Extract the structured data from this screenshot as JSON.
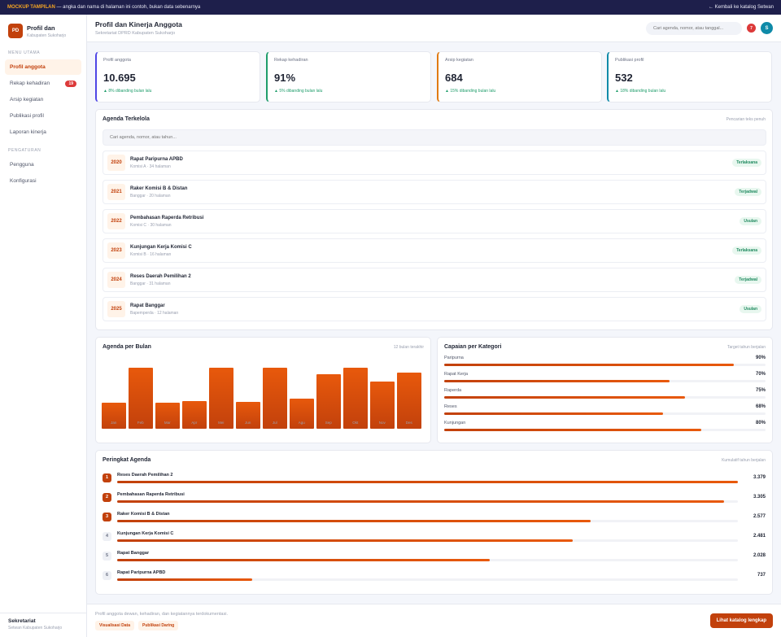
{
  "topbar": {
    "tag": "MOCKUP TAMPILAN",
    "note": "— angka dan nama di halaman ini contoh, bukan data sebenarnya",
    "back": "← Kembali ke katalog Setwan"
  },
  "brand": {
    "initials": "PD",
    "title": "Profil dan",
    "subtitle": "Kabupaten Sukoharjo"
  },
  "sidebar": {
    "section_main": "MENU UTAMA",
    "items": [
      {
        "label": "Profil anggota",
        "active": true
      },
      {
        "label": "Rekap kehadiran",
        "badge": "19"
      },
      {
        "label": "Arsip kegiatan"
      },
      {
        "label": "Publikasi profil"
      },
      {
        "label": "Laporan kinerja"
      }
    ],
    "section_settings": "PENGATURAN",
    "settings": [
      {
        "label": "Pengguna"
      },
      {
        "label": "Konfigurasi"
      }
    ],
    "footer_title": "Sekretariat",
    "footer_sub": "Setwan Kabupaten Sukoharjo"
  },
  "header": {
    "title": "Profil dan Kinerja Anggota",
    "subtitle": "Sekretariat DPRD Kabupaten Sukoharjo",
    "search_placeholder": "Cari agenda, nomor, atau tanggal...",
    "notif_count": "7",
    "avatar": "S"
  },
  "stats": [
    {
      "label": "Profil anggota",
      "value": "10.695",
      "delta": "▲ 8% dibanding bulan lalu",
      "color": "#4f46e5"
    },
    {
      "label": "Rekap kehadiran",
      "value": "91%",
      "delta": "▲ 5% dibanding bulan lalu",
      "color": "#1f9d6b"
    },
    {
      "label": "Arsip kegiatan",
      "value": "684",
      "delta": "▲ 15% dibanding bulan lalu",
      "color": "#e07a10"
    },
    {
      "label": "Publikasi profil",
      "value": "532",
      "delta": "▲ 18% dibanding bulan lalu",
      "color": "#0f8aa8"
    }
  ],
  "agenda": {
    "title": "Agenda Terkelola",
    "hint": "Pencarian teks penuh",
    "search_placeholder": "Cari agenda, nomor, atau tahun...",
    "rows": [
      {
        "year": "2020",
        "name": "Rapat Paripurna APBD",
        "meta": "Komisi A · 34 halaman",
        "status": "Terlaksana"
      },
      {
        "year": "2021",
        "name": "Raker Komisi B & Distan",
        "meta": "Banggar · 20 halaman",
        "status": "Terjadwal"
      },
      {
        "year": "2022",
        "name": "Pembahasan Raperda Retribusi",
        "meta": "Komisi C · 30 halaman",
        "status": "Usulan"
      },
      {
        "year": "2023",
        "name": "Kunjungan Kerja Komisi C",
        "meta": "Komisi B · 16 halaman",
        "status": "Terlaksana"
      },
      {
        "year": "2024",
        "name": "Reses Daerah Pemilihan 2",
        "meta": "Banggar · 31 halaman",
        "status": "Terjadwal"
      },
      {
        "year": "2025",
        "name": "Rapat Banggar",
        "meta": "Bapemperda · 12 halaman",
        "status": "Usulan"
      }
    ]
  },
  "monthly": {
    "title": "Agenda per Bulan",
    "hint": "12 bulan terakhir",
    "chart_data": {
      "type": "bar",
      "categories": [
        "Jan",
        "Feb",
        "Mar",
        "Apr",
        "Mei",
        "Jun",
        "Jul",
        "Agu",
        "Sep",
        "Okt",
        "Nov",
        "Des"
      ],
      "values": [
        43,
        100,
        43,
        45,
        100,
        44,
        100,
        50,
        90,
        100,
        78,
        92
      ],
      "ylim": [
        0,
        100
      ]
    }
  },
  "categories": {
    "title": "Capaian per Kategori",
    "hint": "Target tahun berjalan",
    "items": [
      {
        "name": "Paripurna",
        "pct_label": "90%",
        "value": 90
      },
      {
        "name": "Rapat Kerja",
        "pct_label": "70%",
        "value": 70
      },
      {
        "name": "Raperda",
        "pct_label": "75%",
        "value": 75
      },
      {
        "name": "Reses",
        "pct_label": "68%",
        "value": 68
      },
      {
        "name": "Kunjungan",
        "pct_label": "80%",
        "value": 80
      }
    ]
  },
  "ranking": {
    "title": "Peringkat Agenda",
    "hint": "Kumulatif tahun berjalan",
    "max": 3379,
    "items": [
      {
        "rank": "1",
        "name": "Reses Daerah Pemilihan 2",
        "value_label": "3.379",
        "value": 3379
      },
      {
        "rank": "2",
        "name": "Pembahasan Raperda Retribusi",
        "value_label": "3.305",
        "value": 3305
      },
      {
        "rank": "3",
        "name": "Raker Komisi B & Distan",
        "value_label": "2.577",
        "value": 2577
      },
      {
        "rank": "4",
        "name": "Kunjungan Kerja Komisi C",
        "value_label": "2.481",
        "value": 2481
      },
      {
        "rank": "5",
        "name": "Rapat Banggar",
        "value_label": "2.028",
        "value": 2028
      },
      {
        "rank": "6",
        "name": "Rapat Paripurna APBD",
        "value_label": "737",
        "value": 737
      }
    ]
  },
  "footer": {
    "text": "Profil anggota dewan, kehadiran, dan kegiatannya terdokumentasi.",
    "chips": [
      "Visualisasi Data",
      "Publikasi Daring"
    ],
    "cta": "Lihat katalog lengkap"
  }
}
